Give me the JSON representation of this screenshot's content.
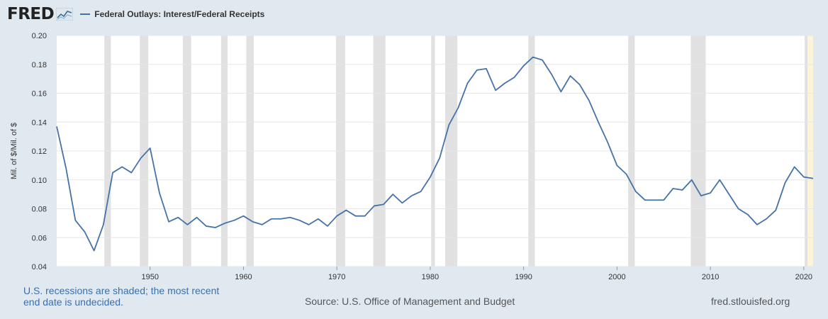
{
  "header": {
    "logo_text": "FRED",
    "logo_icon": "fred-chart-icon",
    "series_title": "Federal Outlays: Interest/Federal Receipts"
  },
  "footer": {
    "recession_note": "U.S. recessions are shaded; the most recent end date is undecided.",
    "source": "Source: U.S. Office of Management and Budget",
    "url": "fred.stlouisfed.org"
  },
  "colors": {
    "line": "#4572a7",
    "recession": "#e1e1e1",
    "undecided": "#fbf4d9",
    "background": "#e1e9f0",
    "plot": "#ffffff",
    "grid": "#e6e6e6"
  },
  "chart_data": {
    "type": "line",
    "title": "Federal Outlays: Interest/Federal Receipts",
    "xlabel": "",
    "ylabel": "Mil. of $/Mil. of $",
    "xlim": [
      1940,
      2021
    ],
    "ylim": [
      0.04,
      0.2
    ],
    "yticks": [
      0.04,
      0.06,
      0.08,
      0.1,
      0.12,
      0.14,
      0.16,
      0.18,
      0.2
    ],
    "ytick_labels": [
      "0.04",
      "0.06",
      "0.08",
      "0.10",
      "0.12",
      "0.14",
      "0.16",
      "0.18",
      "0.20"
    ],
    "xticks": [
      1950,
      1960,
      1970,
      1980,
      1990,
      2000,
      2010,
      2020
    ],
    "xtick_labels": [
      "1950",
      "1960",
      "1970",
      "1980",
      "1990",
      "2000",
      "2010",
      "2020"
    ],
    "grid": true,
    "legend": "top-left",
    "recessions": [
      [
        1945.1,
        1945.8
      ],
      [
        1948.9,
        1949.8
      ],
      [
        1953.5,
        1954.4
      ],
      [
        1957.6,
        1958.3
      ],
      [
        1960.3,
        1961.1
      ],
      [
        1969.9,
        1970.9
      ],
      [
        1973.9,
        1975.2
      ],
      [
        1980.1,
        1980.5
      ],
      [
        1981.6,
        1982.9
      ],
      [
        1990.5,
        1991.2
      ],
      [
        2001.2,
        2001.9
      ],
      [
        2007.9,
        2009.5
      ],
      [
        2020.1,
        2020.4
      ]
    ],
    "undecided_shade": [
      2020.4,
      2021
    ],
    "series": [
      {
        "name": "Federal Outlays: Interest/Federal Receipts",
        "x": [
          1940,
          1941,
          1942,
          1943,
          1944,
          1945,
          1946,
          1947,
          1948,
          1949,
          1950,
          1951,
          1952,
          1953,
          1954,
          1955,
          1956,
          1957,
          1958,
          1959,
          1960,
          1961,
          1962,
          1963,
          1964,
          1965,
          1966,
          1967,
          1968,
          1969,
          1970,
          1971,
          1972,
          1973,
          1974,
          1975,
          1976,
          1977,
          1978,
          1979,
          1980,
          1981,
          1982,
          1983,
          1984,
          1985,
          1986,
          1987,
          1988,
          1989,
          1990,
          1991,
          1992,
          1993,
          1994,
          1995,
          1996,
          1997,
          1998,
          1999,
          2000,
          2001,
          2002,
          2003,
          2004,
          2005,
          2006,
          2007,
          2008,
          2009,
          2010,
          2011,
          2012,
          2013,
          2014,
          2015,
          2016,
          2017,
          2018,
          2019,
          2020,
          2021
        ],
        "values": [
          0.137,
          0.108,
          0.072,
          0.064,
          0.051,
          0.069,
          0.105,
          0.109,
          0.105,
          0.115,
          0.122,
          0.091,
          0.071,
          0.074,
          0.069,
          0.074,
          0.068,
          0.067,
          0.07,
          0.072,
          0.075,
          0.071,
          0.069,
          0.073,
          0.073,
          0.074,
          0.072,
          0.069,
          0.073,
          0.068,
          0.075,
          0.079,
          0.075,
          0.075,
          0.082,
          0.083,
          0.09,
          0.084,
          0.089,
          0.092,
          0.102,
          0.115,
          0.138,
          0.15,
          0.167,
          0.176,
          0.177,
          0.162,
          0.167,
          0.171,
          0.179,
          0.185,
          0.183,
          0.173,
          0.161,
          0.172,
          0.166,
          0.155,
          0.14,
          0.126,
          0.11,
          0.104,
          0.092,
          0.086,
          0.086,
          0.086,
          0.094,
          0.093,
          0.1,
          0.089,
          0.091,
          0.1,
          0.09,
          0.08,
          0.076,
          0.069,
          0.073,
          0.079,
          0.098,
          0.109,
          0.102,
          0.101
        ]
      }
    ]
  }
}
